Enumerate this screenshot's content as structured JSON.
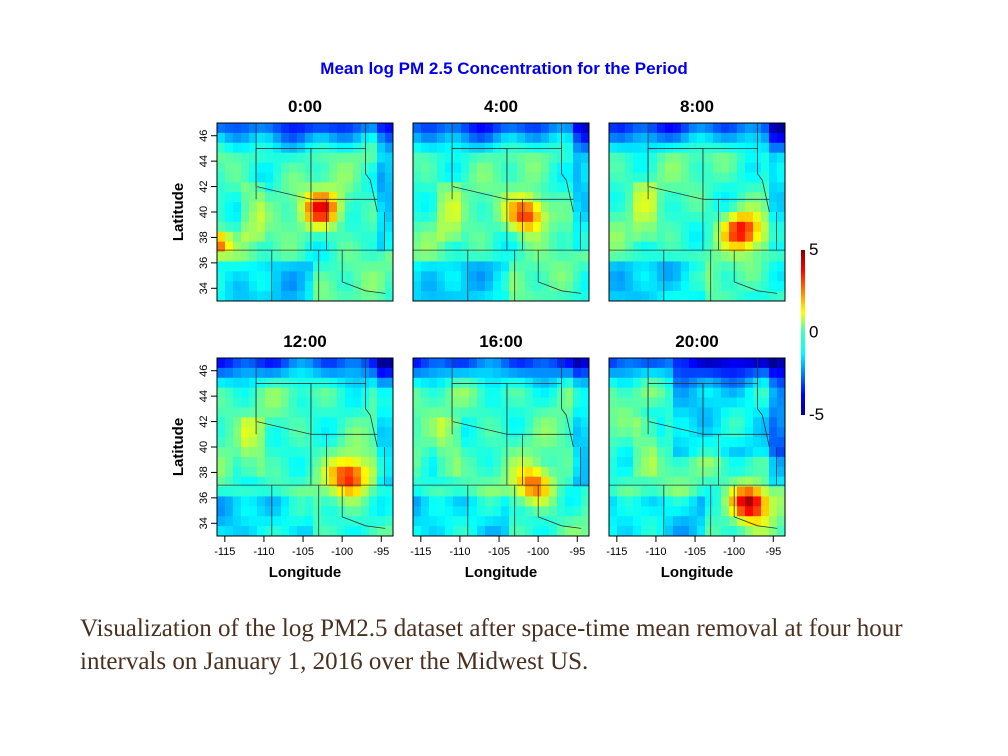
{
  "chart_data": {
    "type": "heatmap",
    "title": "Mean log PM 2.5 Concentration for the Period",
    "xlabel": "Longitude",
    "ylabel": "Latitude",
    "x_ticks": [
      "-115",
      "-110",
      "-105",
      "-100",
      "-95"
    ],
    "y_ticks": [
      "34",
      "36",
      "38",
      "40",
      "42",
      "44",
      "46"
    ],
    "xlim": [
      -116,
      -93.5
    ],
    "ylim": [
      33,
      47
    ],
    "colorbar": {
      "ticks": [
        "5",
        "0",
        "-5"
      ],
      "min": -5,
      "max": 5,
      "colormap": "jet"
    },
    "panels": [
      {
        "title": "0:00",
        "hotspot": {
          "lon": -102.5,
          "lat": 40.2,
          "peak": 3.6
        }
      },
      {
        "title": "4:00",
        "hotspot": {
          "lon": -101.5,
          "lat": 39.8,
          "peak": 3.8
        }
      },
      {
        "title": "8:00",
        "hotspot": {
          "lon": -99.0,
          "lat": 38.5,
          "peak": 3.7
        }
      },
      {
        "title": "12:00",
        "hotspot": {
          "lon": -99.0,
          "lat": 37.6,
          "peak": 3.6
        }
      },
      {
        "title": "16:00",
        "hotspot": {
          "lon": -100.5,
          "lat": 37.0,
          "peak": 2.8
        }
      },
      {
        "title": "20:00",
        "hotspot": {
          "lon": -98.0,
          "lat": 35.6,
          "peak": 4.8
        }
      }
    ]
  },
  "caption": "Visualization of the log PM2.5 dataset after space-time mean removal at four hour intervals on January 1, 2016 over the Midwest US."
}
